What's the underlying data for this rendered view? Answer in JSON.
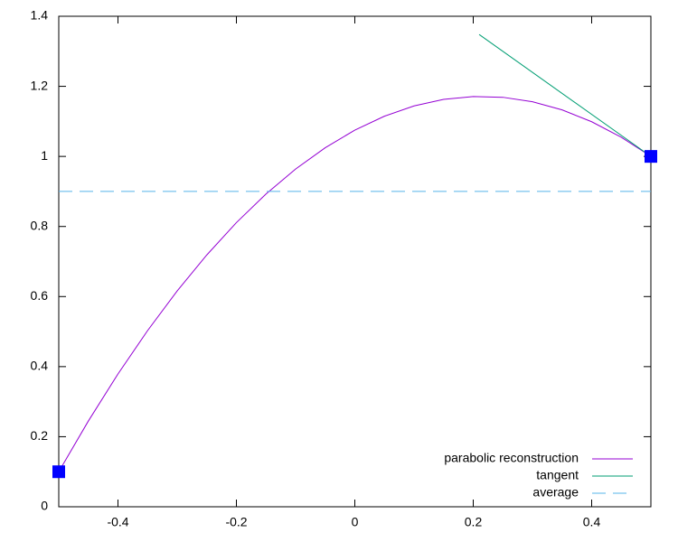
{
  "chart_data": {
    "type": "line",
    "series": [
      {
        "name": "parabolic reconstruction",
        "color": "#9400d3",
        "x": [
          -0.5,
          -0.45,
          -0.4,
          -0.35,
          -0.3,
          -0.25,
          -0.2,
          -0.15,
          -0.1,
          -0.05,
          0,
          0.05,
          0.1,
          0.15,
          0.2,
          0.25,
          0.3,
          0.35,
          0.4,
          0.45,
          0.5
        ],
        "values": [
          0.1,
          0.24475,
          0.379,
          0.50275,
          0.616,
          0.71875,
          0.811,
          0.89275,
          0.964,
          1.02475,
          1.075,
          1.11475,
          1.144,
          1.16275,
          1.171,
          1.16875,
          1.156,
          1.13275,
          1.099,
          1.05475,
          1.0
        ]
      },
      {
        "name": "tangent",
        "color": "#009e73",
        "x": [
          0.21,
          0.5
        ],
        "values": [
          1.348,
          1.0
        ]
      },
      {
        "name": "average",
        "color": "#56b4e9",
        "dashed": true,
        "x": [
          -0.5,
          0.5
        ],
        "values": [
          0.9,
          0.9
        ]
      },
      {
        "color": "#0000ff",
        "marker": "square",
        "x": [
          -0.5,
          0.5
        ],
        "values": [
          0.1,
          1.0
        ]
      }
    ],
    "xlim": [
      -0.5,
      0.5
    ],
    "xticks": [
      -0.4,
      -0.2,
      0,
      0.2,
      0.4
    ],
    "ylim": [
      0,
      1.4
    ],
    "yticks": [
      0,
      0.2,
      0.4,
      0.6,
      0.8,
      1,
      1.2,
      1.4
    ],
    "grid": false,
    "legend": "bottom-right"
  }
}
